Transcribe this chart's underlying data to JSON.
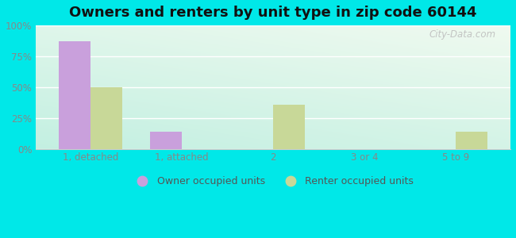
{
  "title": "Owners and renters by unit type in zip code 60144",
  "categories": [
    "1, detached",
    "1, attached",
    "2",
    "3 or 4",
    "5 to 9"
  ],
  "owner_values": [
    87,
    14,
    0,
    0,
    0
  ],
  "renter_values": [
    50,
    0,
    36,
    0,
    14
  ],
  "owner_color": "#c9a0dc",
  "renter_color": "#c8d898",
  "outer_bg": "#00e8e8",
  "plot_bg_topleft": "#c8f0e0",
  "plot_bg_topright": "#f0faf0",
  "plot_bg_bottom": "#e8f8e8",
  "yticks": [
    0,
    25,
    50,
    75,
    100
  ],
  "ylabel_fmt": "{}%",
  "bar_width": 0.35,
  "title_fontsize": 13,
  "watermark": "City-Data.com",
  "tick_color": "#888888",
  "grid_color": "#dddddd"
}
